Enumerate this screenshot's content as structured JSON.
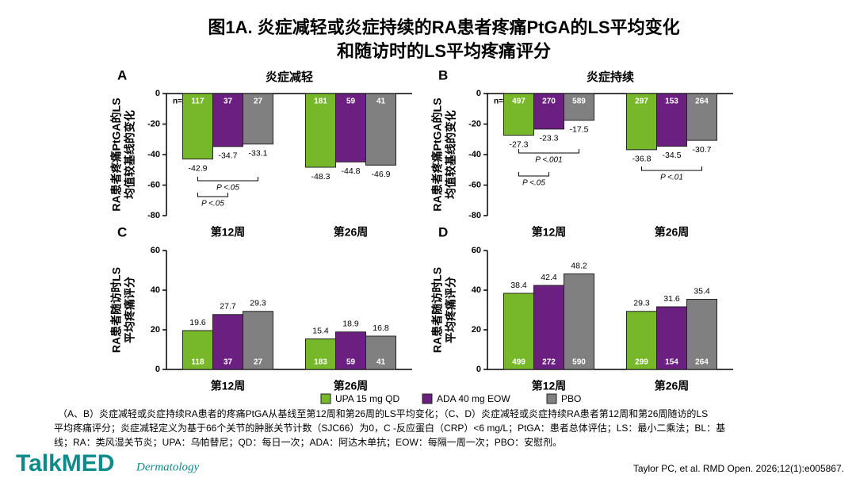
{
  "title_lines": [
    "图1A. 炎症减轻或炎症持续的RA患者疼痛PtGA的LS平均变化",
    "和随访时的LS平均疼痛评分"
  ],
  "legend": [
    {
      "name": "UPA 15 mg QD",
      "color": "#76b82a"
    },
    {
      "name": "ADA 40 mg EOW",
      "color": "#6b1f80"
    },
    {
      "name": "PBO",
      "color": "#808080"
    }
  ],
  "chart_data": [
    {
      "type": "bar",
      "panel": "A",
      "title": "炎症减轻",
      "y_label": [
        "RA患者疼痛PtGA的LS",
        "均值较基线的变化"
      ],
      "categories": [
        "第12周",
        "第26周"
      ],
      "n_prefix": "n=",
      "series": [
        {
          "values": [
            -42.9,
            -48.3
          ],
          "n": [
            117,
            181
          ]
        },
        {
          "values": [
            -34.7,
            -44.8
          ],
          "n": [
            37,
            59
          ]
        },
        {
          "values": [
            -33.1,
            -46.9
          ],
          "n": [
            27,
            41
          ]
        }
      ],
      "ylim": [
        -80,
        0
      ],
      "yticks": [
        0,
        -20,
        -40,
        -60,
        -80
      ],
      "annotations": [
        "P <.05",
        "P <.05"
      ]
    },
    {
      "type": "bar",
      "panel": "B",
      "title": "炎症持续",
      "y_label": [
        "RA患者疼痛PtGA的LS",
        "均值较基线的变化"
      ],
      "categories": [
        "第12周",
        "第26周"
      ],
      "n_prefix": "n=",
      "series": [
        {
          "values": [
            -27.3,
            -36.8
          ],
          "n": [
            497,
            297
          ]
        },
        {
          "values": [
            -23.3,
            -34.5
          ],
          "n": [
            270,
            153
          ]
        },
        {
          "values": [
            -17.5,
            -30.7
          ],
          "n": [
            589,
            264
          ]
        }
      ],
      "ylim": [
        -80,
        0
      ],
      "yticks": [
        0,
        -20,
        -40,
        -60,
        -80
      ],
      "annotations": [
        "P <.001",
        "P <.05",
        "P <.01"
      ]
    },
    {
      "type": "bar",
      "panel": "C",
      "y_label": [
        "RA患者随访时LS",
        "平均疼痛评分"
      ],
      "categories": [
        "第12周",
        "第26周"
      ],
      "series": [
        {
          "values": [
            19.6,
            15.4
          ],
          "n": [
            118,
            183
          ]
        },
        {
          "values": [
            27.7,
            18.9
          ],
          "n": [
            37,
            59
          ]
        },
        {
          "values": [
            29.3,
            16.8
          ],
          "n": [
            27,
            41
          ]
        }
      ],
      "ylim": [
        0,
        60
      ],
      "yticks": [
        0,
        20,
        40,
        60
      ]
    },
    {
      "type": "bar",
      "panel": "D",
      "y_label": [
        "RA患者随访时LS",
        "平均疼痛评分"
      ],
      "categories": [
        "第12周",
        "第26周"
      ],
      "series": [
        {
          "values": [
            38.4,
            29.3
          ],
          "n": [
            499,
            299
          ]
        },
        {
          "values": [
            42.4,
            31.6
          ],
          "n": [
            272,
            154
          ]
        },
        {
          "values": [
            48.2,
            35.4
          ],
          "n": [
            590,
            264
          ]
        }
      ],
      "ylim": [
        0,
        60
      ],
      "yticks": [
        0,
        20,
        40,
        60
      ]
    }
  ],
  "footnote": [
    "（A、B）炎症减轻或炎症持续RA患者的疼痛PtGA从基线至第12周和第26周的LS平均变化；（C、D）炎症减轻或炎症持续RA患者第12周和第26周随访的LS",
    "平均疼痛评分；炎症减轻定义为基于66个关节的肿胀关节计数（SJC66）为0，C -反应蛋白（CRP）<6 mg/L；PtGA：患者总体评估；LS：最小二乘法；BL：基",
    "线；RA：类风湿关节炎；UPA：乌帕替尼；QD：每日一次；ADA：阿达木单抗；EOW：每隔一周一次；PBO：安慰剂。"
  ],
  "logo": {
    "brand": "TalkMED",
    "sub": "Dermatology"
  },
  "citation": "Taylor PC, et al. RMD Open. 2026;12(1):e005867."
}
